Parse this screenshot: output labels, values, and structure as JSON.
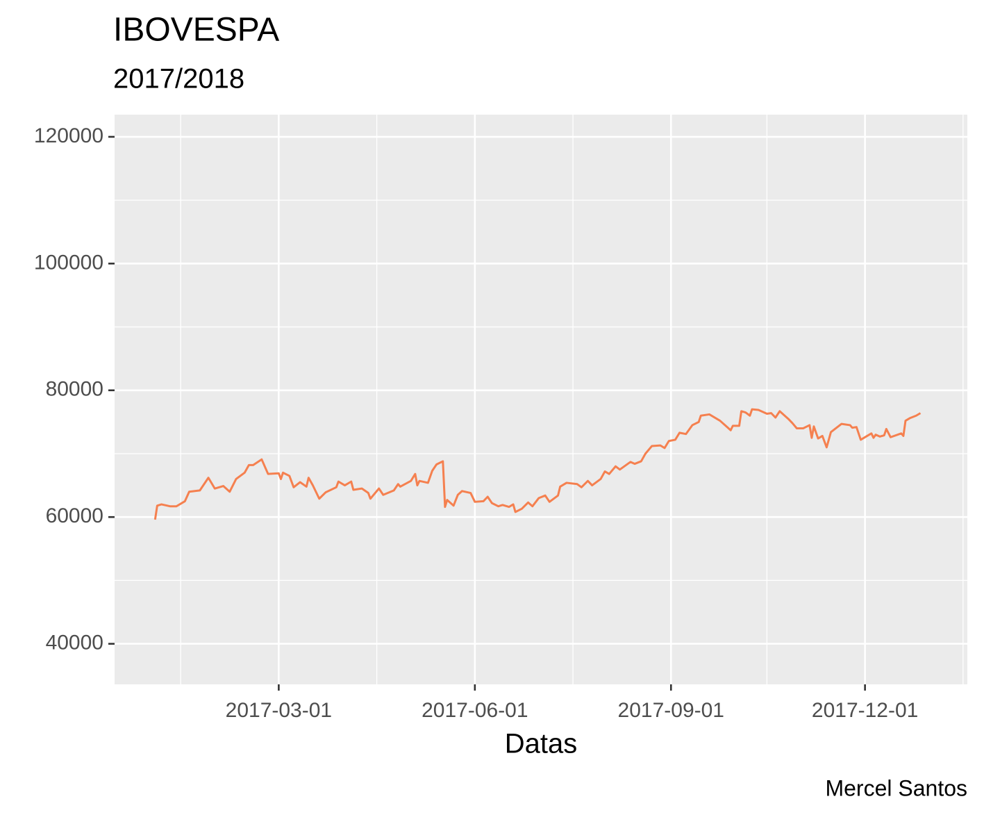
{
  "chart_data": {
    "type": "line",
    "title": "IBOVESPA",
    "subtitle": "2017/2018",
    "x_label": "Datas",
    "caption": "Mercel Santos",
    "x": [
      "2017-01-02",
      "2017-01-03",
      "2017-01-05",
      "2017-01-09",
      "2017-01-12",
      "2017-01-16",
      "2017-01-18",
      "2017-01-23",
      "2017-01-27",
      "2017-01-30",
      "2017-02-03",
      "2017-02-06",
      "2017-02-09",
      "2017-02-13",
      "2017-02-15",
      "2017-02-17",
      "2017-02-21",
      "2017-02-24",
      "2017-03-01",
      "2017-03-02",
      "2017-03-03",
      "2017-03-06",
      "2017-03-08",
      "2017-03-11",
      "2017-03-14",
      "2017-03-15",
      "2017-03-17",
      "2017-03-20",
      "2017-03-23",
      "2017-03-28",
      "2017-03-29",
      "2017-04-01",
      "2017-04-04",
      "2017-04-05",
      "2017-04-09",
      "2017-04-12",
      "2017-04-13",
      "2017-04-17",
      "2017-04-19",
      "2017-04-24",
      "2017-04-26",
      "2017-04-27",
      "2017-05-02",
      "2017-05-04",
      "2017-05-05",
      "2017-05-06",
      "2017-05-10",
      "2017-05-12",
      "2017-05-14",
      "2017-05-17",
      "2017-05-18",
      "2017-05-19",
      "2017-05-22",
      "2017-05-24",
      "2017-05-26",
      "2017-05-30",
      "2017-06-01",
      "2017-06-05",
      "2017-06-07",
      "2017-06-09",
      "2017-06-12",
      "2017-06-14",
      "2017-06-17",
      "2017-06-19",
      "2017-06-20",
      "2017-06-23",
      "2017-06-26",
      "2017-06-28",
      "2017-07-01",
      "2017-07-04",
      "2017-07-06",
      "2017-07-10",
      "2017-07-11",
      "2017-07-14",
      "2017-07-19",
      "2017-07-21",
      "2017-07-24",
      "2017-07-26",
      "2017-07-30",
      "2017-08-01",
      "2017-08-03",
      "2017-08-06",
      "2017-08-08",
      "2017-08-13",
      "2017-08-15",
      "2017-08-18",
      "2017-08-20",
      "2017-08-23",
      "2017-08-27",
      "2017-08-29",
      "2017-08-31",
      "2017-09-03",
      "2017-09-05",
      "2017-09-08",
      "2017-09-11",
      "2017-09-14",
      "2017-09-15",
      "2017-09-19",
      "2017-09-24",
      "2017-09-27",
      "2017-09-29",
      "2017-09-30",
      "2017-10-03",
      "2017-10-04",
      "2017-10-06",
      "2017-10-08",
      "2017-10-09",
      "2017-10-12",
      "2017-10-16",
      "2017-10-18",
      "2017-10-20",
      "2017-10-22",
      "2017-10-26",
      "2017-10-28",
      "2017-10-30",
      "2017-11-02",
      "2017-11-05",
      "2017-11-06",
      "2017-11-07",
      "2017-11-09",
      "2017-11-11",
      "2017-11-13",
      "2017-11-15",
      "2017-11-20",
      "2017-11-24",
      "2017-11-25",
      "2017-11-27",
      "2017-11-29",
      "2017-12-02",
      "2017-12-04",
      "2017-12-05",
      "2017-12-06",
      "2017-12-08",
      "2017-12-10",
      "2017-12-11",
      "2017-12-13",
      "2017-12-18",
      "2017-12-19",
      "2017-12-20",
      "2017-12-22",
      "2017-12-25",
      "2017-12-27"
    ],
    "series": [
      {
        "name": "IBOVESPA",
        "color": "#f5804f",
        "values": [
          59600,
          61800,
          62000,
          61700,
          61700,
          62500,
          64000,
          64200,
          66200,
          64500,
          64900,
          64000,
          66000,
          67000,
          68200,
          68200,
          69100,
          66800,
          66900,
          66000,
          67000,
          66500,
          64700,
          65500,
          64800,
          66200,
          65000,
          62900,
          63900,
          64700,
          65600,
          65000,
          65600,
          64300,
          64500,
          63800,
          62900,
          64500,
          63500,
          64200,
          65200,
          64800,
          65700,
          66800,
          65000,
          65700,
          65400,
          67300,
          68300,
          68800,
          61600,
          62700,
          61800,
          63500,
          64100,
          63800,
          62400,
          62500,
          63200,
          62200,
          61700,
          61900,
          61600,
          62000,
          60800,
          61300,
          62300,
          61700,
          63000,
          63400,
          62400,
          63400,
          64800,
          65400,
          65200,
          64700,
          65700,
          65000,
          66000,
          67200,
          66800,
          68000,
          67500,
          68700,
          68400,
          68800,
          70000,
          71200,
          71300,
          70900,
          72000,
          72200,
          73300,
          73100,
          74500,
          75000,
          76000,
          76200,
          75200,
          74300,
          73700,
          74400,
          74400,
          76700,
          76500,
          76000,
          77000,
          76900,
          76300,
          76400,
          75700,
          76700,
          75500,
          74800,
          74000,
          74000,
          74500,
          72500,
          74300,
          72400,
          72800,
          71000,
          73400,
          74700,
          74500,
          74100,
          74200,
          72200,
          72800,
          73200,
          72500,
          73000,
          72700,
          72900,
          73900,
          72600,
          73200,
          72800,
          75200,
          75600,
          76000,
          76400
        ]
      }
    ],
    "xlim": [
      "2016-12-14",
      "2018-01-18"
    ],
    "xticks": [
      "2017-03-01",
      "2017-06-01",
      "2017-09-01",
      "2017-12-01"
    ],
    "ylim": [
      33600,
      123500
    ],
    "yticks": [
      40000,
      60000,
      80000,
      100000,
      120000
    ],
    "grid": true
  }
}
